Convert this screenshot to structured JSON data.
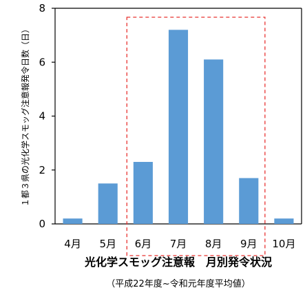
{
  "chart_data": {
    "type": "bar",
    "title": "光化学スモッグ注意報　月別発令状況",
    "subtitle": "（平成22年度~令和元年度平均値）",
    "xlabel": "",
    "ylabel": "１都３県の光化学スモッグ注意報発令日数（日）",
    "categories": [
      "4月",
      "5月",
      "6月",
      "7月",
      "8月",
      "9月",
      "10月"
    ],
    "values": [
      0.2,
      1.5,
      2.3,
      7.2,
      6.1,
      1.7,
      0.2
    ],
    "yticks": [
      0,
      2,
      4,
      6,
      8
    ],
    "ylim": [
      0,
      8
    ],
    "grid": false,
    "legend": "none",
    "bar_color": "#5b9bd5",
    "highlight": {
      "from": "6月",
      "to": "9月",
      "style": "dashed",
      "color": "#e8312f"
    }
  }
}
